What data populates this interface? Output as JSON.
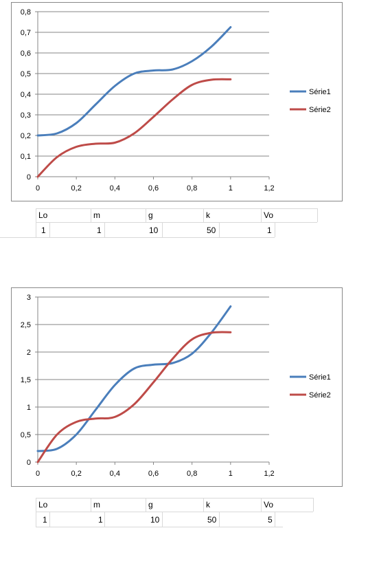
{
  "chart_data": [
    {
      "type": "line",
      "ylim": [
        0,
        0.8
      ],
      "xlim": [
        0,
        1.2
      ],
      "xticks": [
        "0",
        "0,2",
        "0,4",
        "0,6",
        "0,8",
        "1",
        "1,2"
      ],
      "yticks": [
        "0",
        "0,1",
        "0,2",
        "0,3",
        "0,4",
        "0,5",
        "0,6",
        "0,7",
        "0,8"
      ],
      "grid": true,
      "legend_position": "right",
      "series": [
        {
          "name": "Série1",
          "color": "#4a7ebb",
          "x": [
            0,
            0.1,
            0.2,
            0.3,
            0.4,
            0.5,
            0.6,
            0.7,
            0.8,
            0.9,
            1.0
          ],
          "y": [
            0.2,
            0.21,
            0.26,
            0.35,
            0.44,
            0.5,
            0.515,
            0.52,
            0.56,
            0.63,
            0.725
          ]
        },
        {
          "name": "Série2",
          "color": "#be4b48",
          "x": [
            0,
            0.1,
            0.2,
            0.3,
            0.4,
            0.5,
            0.6,
            0.7,
            0.8,
            0.9,
            1.0
          ],
          "y": [
            0.0,
            0.095,
            0.145,
            0.16,
            0.165,
            0.21,
            0.29,
            0.375,
            0.445,
            0.47,
            0.472
          ]
        }
      ]
    },
    {
      "type": "line",
      "ylim": [
        0,
        3
      ],
      "xlim": [
        0,
        1.2
      ],
      "xticks": [
        "0",
        "0,2",
        "0,4",
        "0,6",
        "0,8",
        "1",
        "1,2"
      ],
      "yticks": [
        "0",
        "0,5",
        "1",
        "1,5",
        "2",
        "2,5",
        "3"
      ],
      "grid": true,
      "legend_position": "right",
      "series": [
        {
          "name": "Série1",
          "color": "#4a7ebb",
          "x": [
            0,
            0.1,
            0.2,
            0.3,
            0.4,
            0.5,
            0.6,
            0.7,
            0.8,
            0.9,
            1.0
          ],
          "y": [
            0.2,
            0.24,
            0.5,
            0.95,
            1.4,
            1.7,
            1.77,
            1.8,
            1.97,
            2.35,
            2.83
          ]
        },
        {
          "name": "Série2",
          "color": "#be4b48",
          "x": [
            0,
            0.1,
            0.2,
            0.3,
            0.4,
            0.5,
            0.6,
            0.7,
            0.8,
            0.9,
            1.0
          ],
          "y": [
            0.0,
            0.5,
            0.73,
            0.79,
            0.82,
            1.05,
            1.45,
            1.88,
            2.23,
            2.35,
            2.36
          ]
        }
      ]
    }
  ],
  "tables": [
    {
      "headers": [
        "Lo",
        "m",
        "g",
        "k",
        "Vo"
      ],
      "values": [
        "1",
        "1",
        "10",
        "50",
        "1"
      ]
    },
    {
      "headers": [
        "Lo",
        "m",
        "g",
        "k",
        "Vo"
      ],
      "values": [
        "1",
        "1",
        "10",
        "50",
        "5"
      ]
    }
  ]
}
